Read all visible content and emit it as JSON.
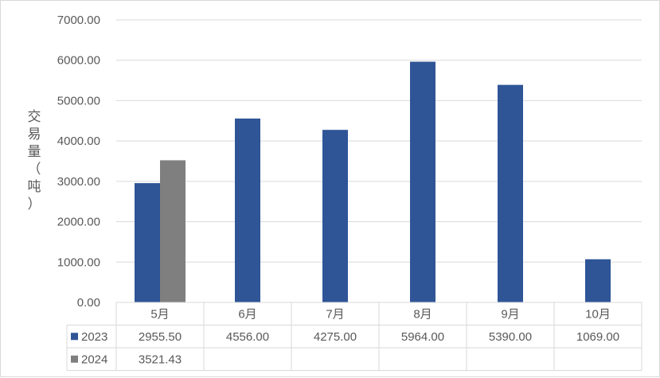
{
  "chart_data": {
    "type": "bar",
    "title": "",
    "xlabel": "",
    "ylabel": "交易量（吨）",
    "ylim": [
      0,
      7000
    ],
    "yticks": [
      "0.00",
      "1000.00",
      "2000.00",
      "3000.00",
      "4000.00",
      "5000.00",
      "6000.00",
      "7000.00"
    ],
    "categories": [
      "5月",
      "6月",
      "7月",
      "8月",
      "9月",
      "10月"
    ],
    "series": [
      {
        "name": "2023",
        "color": "#2f5597",
        "values": [
          2955.5,
          4556.0,
          4275.0,
          5964.0,
          5390.0,
          1069.0
        ],
        "labels": [
          "2955.50",
          "4556.00",
          "4275.00",
          "5964.00",
          "5390.00",
          "1069.00"
        ]
      },
      {
        "name": "2024",
        "color": "#7f7f7f",
        "values": [
          3521.43,
          null,
          null,
          null,
          null,
          null
        ],
        "labels": [
          "3521.43",
          "",
          "",
          "",
          "",
          ""
        ]
      }
    ],
    "grid": true,
    "legend": "data-table"
  }
}
